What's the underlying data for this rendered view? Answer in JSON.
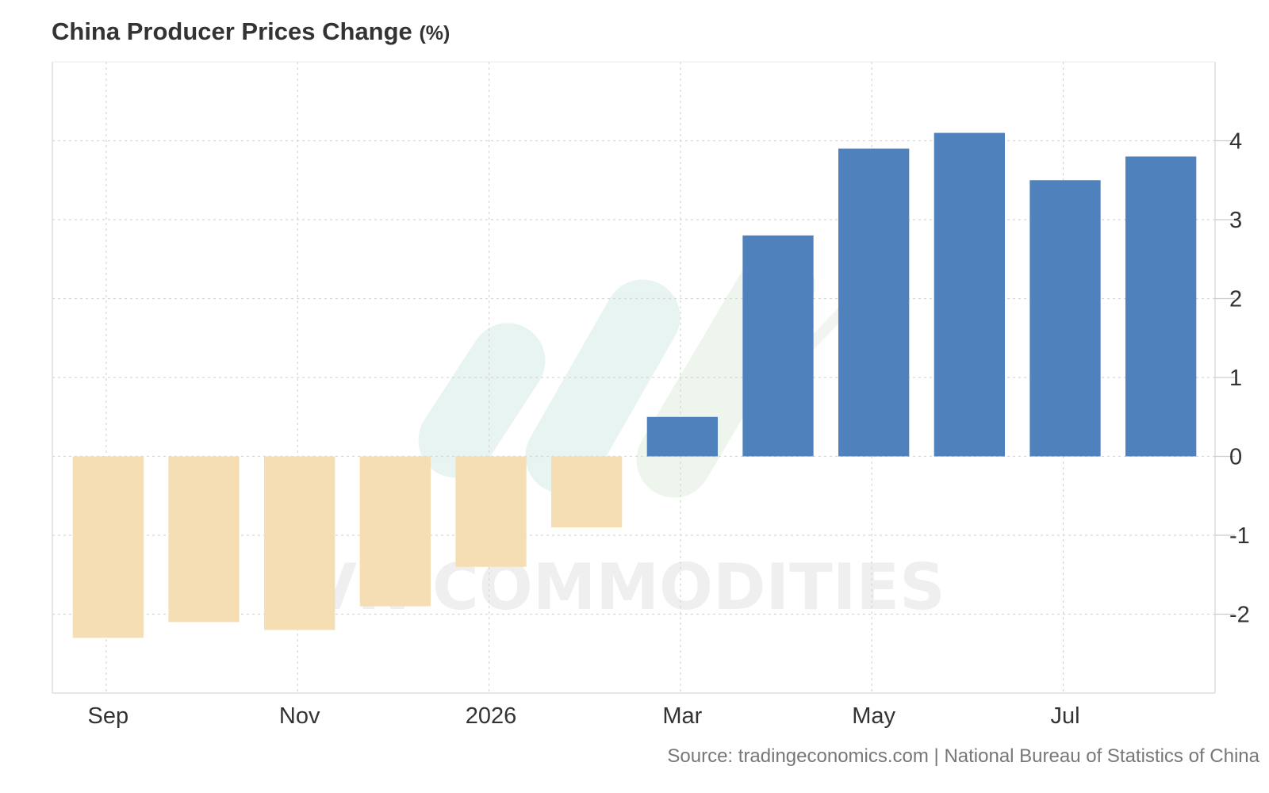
{
  "title": "China Producer Prices Change",
  "title_unit": "(%)",
  "source": "Source: tradingeconomics.com | National Bureau of Statistics of China",
  "watermark": "VN COMMODITIES",
  "colors": {
    "positive": "#4f81bd",
    "negative": "#f5deb3",
    "grid": "#d6d6d6",
    "axis_text": "#333333",
    "watermark": "#cfe5e0"
  },
  "chart_data": {
    "type": "bar",
    "title": "China Producer Prices Change (%)",
    "x_tick_labels": [
      "Sep",
      "Nov",
      "2026",
      "Mar",
      "May",
      "Jul"
    ],
    "x_tick_bar_index": [
      0,
      2,
      4,
      6,
      8,
      10
    ],
    "values": [
      -2.3,
      -2.1,
      -2.2,
      -1.9,
      -1.4,
      -0.9,
      0.5,
      2.8,
      3.9,
      4.1,
      3.5,
      3.8
    ],
    "y_ticks": [
      -2,
      -1,
      0,
      1,
      2,
      3,
      4
    ],
    "ylim": [
      -3,
      5
    ],
    "y_axis_position": "right",
    "grid": true,
    "legend": "none",
    "positive_color": "#4f81bd",
    "negative_color": "#f5deb3"
  }
}
